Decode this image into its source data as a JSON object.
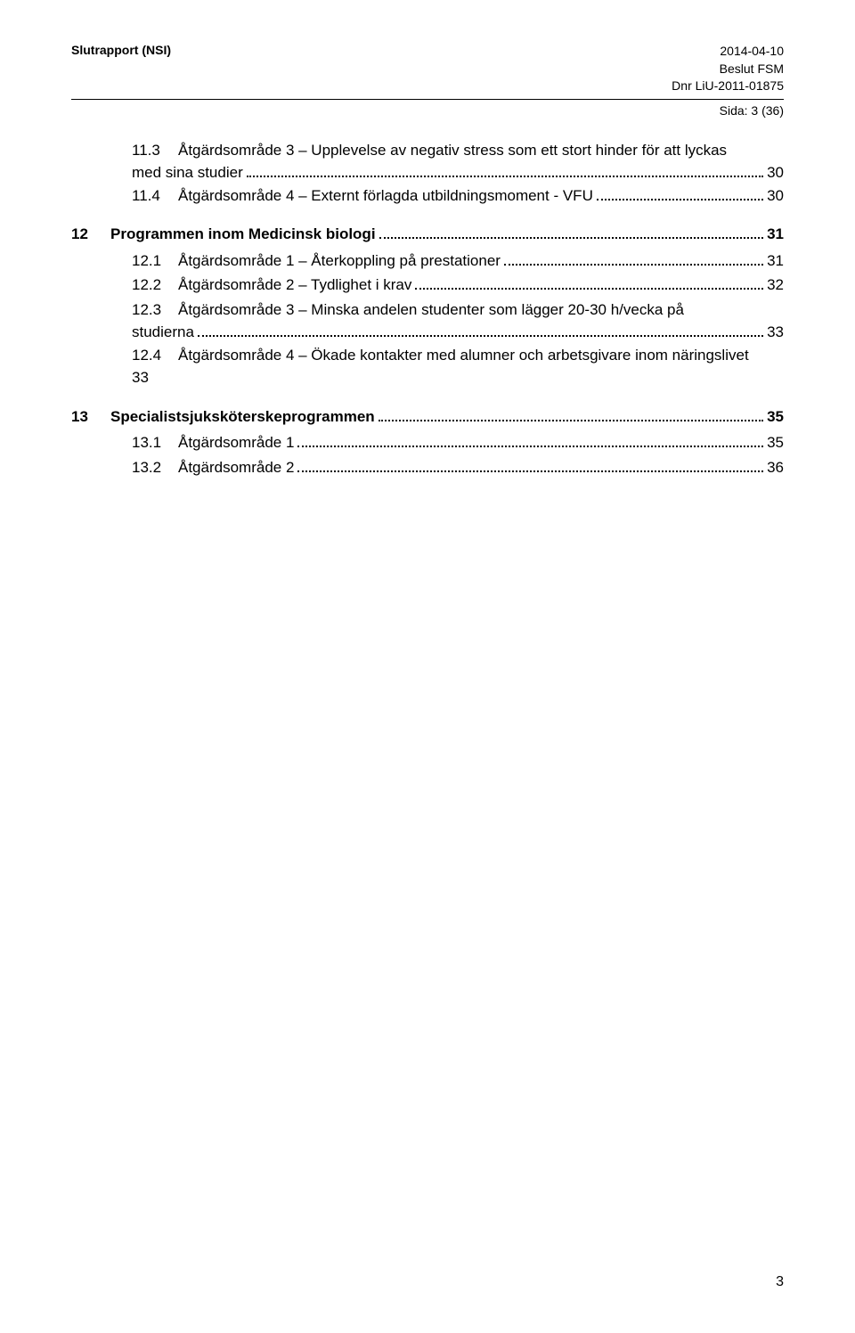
{
  "header": {
    "title_left": "Slutrapport (NSI)",
    "date": "2014-04-10",
    "line2": "Beslut FSM",
    "line3": "Dnr LiU-2011-01875",
    "page_info": "Sida: 3 (36)"
  },
  "toc": {
    "entries": [
      {
        "type": "sub-multi",
        "num": "11.3",
        "title_lines": [
          "Åtgärdsområde 3 – Upplevelse av negativ stress som ett stort hinder för att lyckas",
          "med sina studier"
        ],
        "page": "30"
      },
      {
        "type": "sub",
        "num": "11.4",
        "title": "Åtgärdsområde 4 – Externt förlagda utbildningsmoment - VFU",
        "page": "30"
      },
      {
        "type": "section",
        "num": "12",
        "title": "Programmen inom Medicinsk biologi",
        "page": "31"
      },
      {
        "type": "sub",
        "num": "12.1",
        "title": "Åtgärdsområde 1 – Återkoppling på prestationer",
        "page": "31"
      },
      {
        "type": "sub",
        "num": "12.2",
        "title": "Åtgärdsområde 2 – Tydlighet i krav",
        "page": "32"
      },
      {
        "type": "sub-multi",
        "num": "12.3",
        "title_lines": [
          "Åtgärdsområde 3 – Minska andelen studenter som lägger 20-30 h/vecka på",
          "studierna"
        ],
        "page": "33"
      },
      {
        "type": "sub-trail",
        "num": "12.4",
        "title": "Åtgärdsområde 4 – Ökade kontakter med alumner och arbetsgivare inom näringslivet",
        "trail": "33"
      },
      {
        "type": "section",
        "num": "13",
        "title": "Specialistsjuksköterskeprogrammen",
        "page": "35"
      },
      {
        "type": "sub",
        "num": "13.1",
        "title": "Åtgärdsområde 1",
        "page": "35"
      },
      {
        "type": "sub",
        "num": "13.2",
        "title": "Åtgärdsområde 2",
        "page": "36"
      }
    ]
  },
  "footer": {
    "page_number": "3"
  }
}
